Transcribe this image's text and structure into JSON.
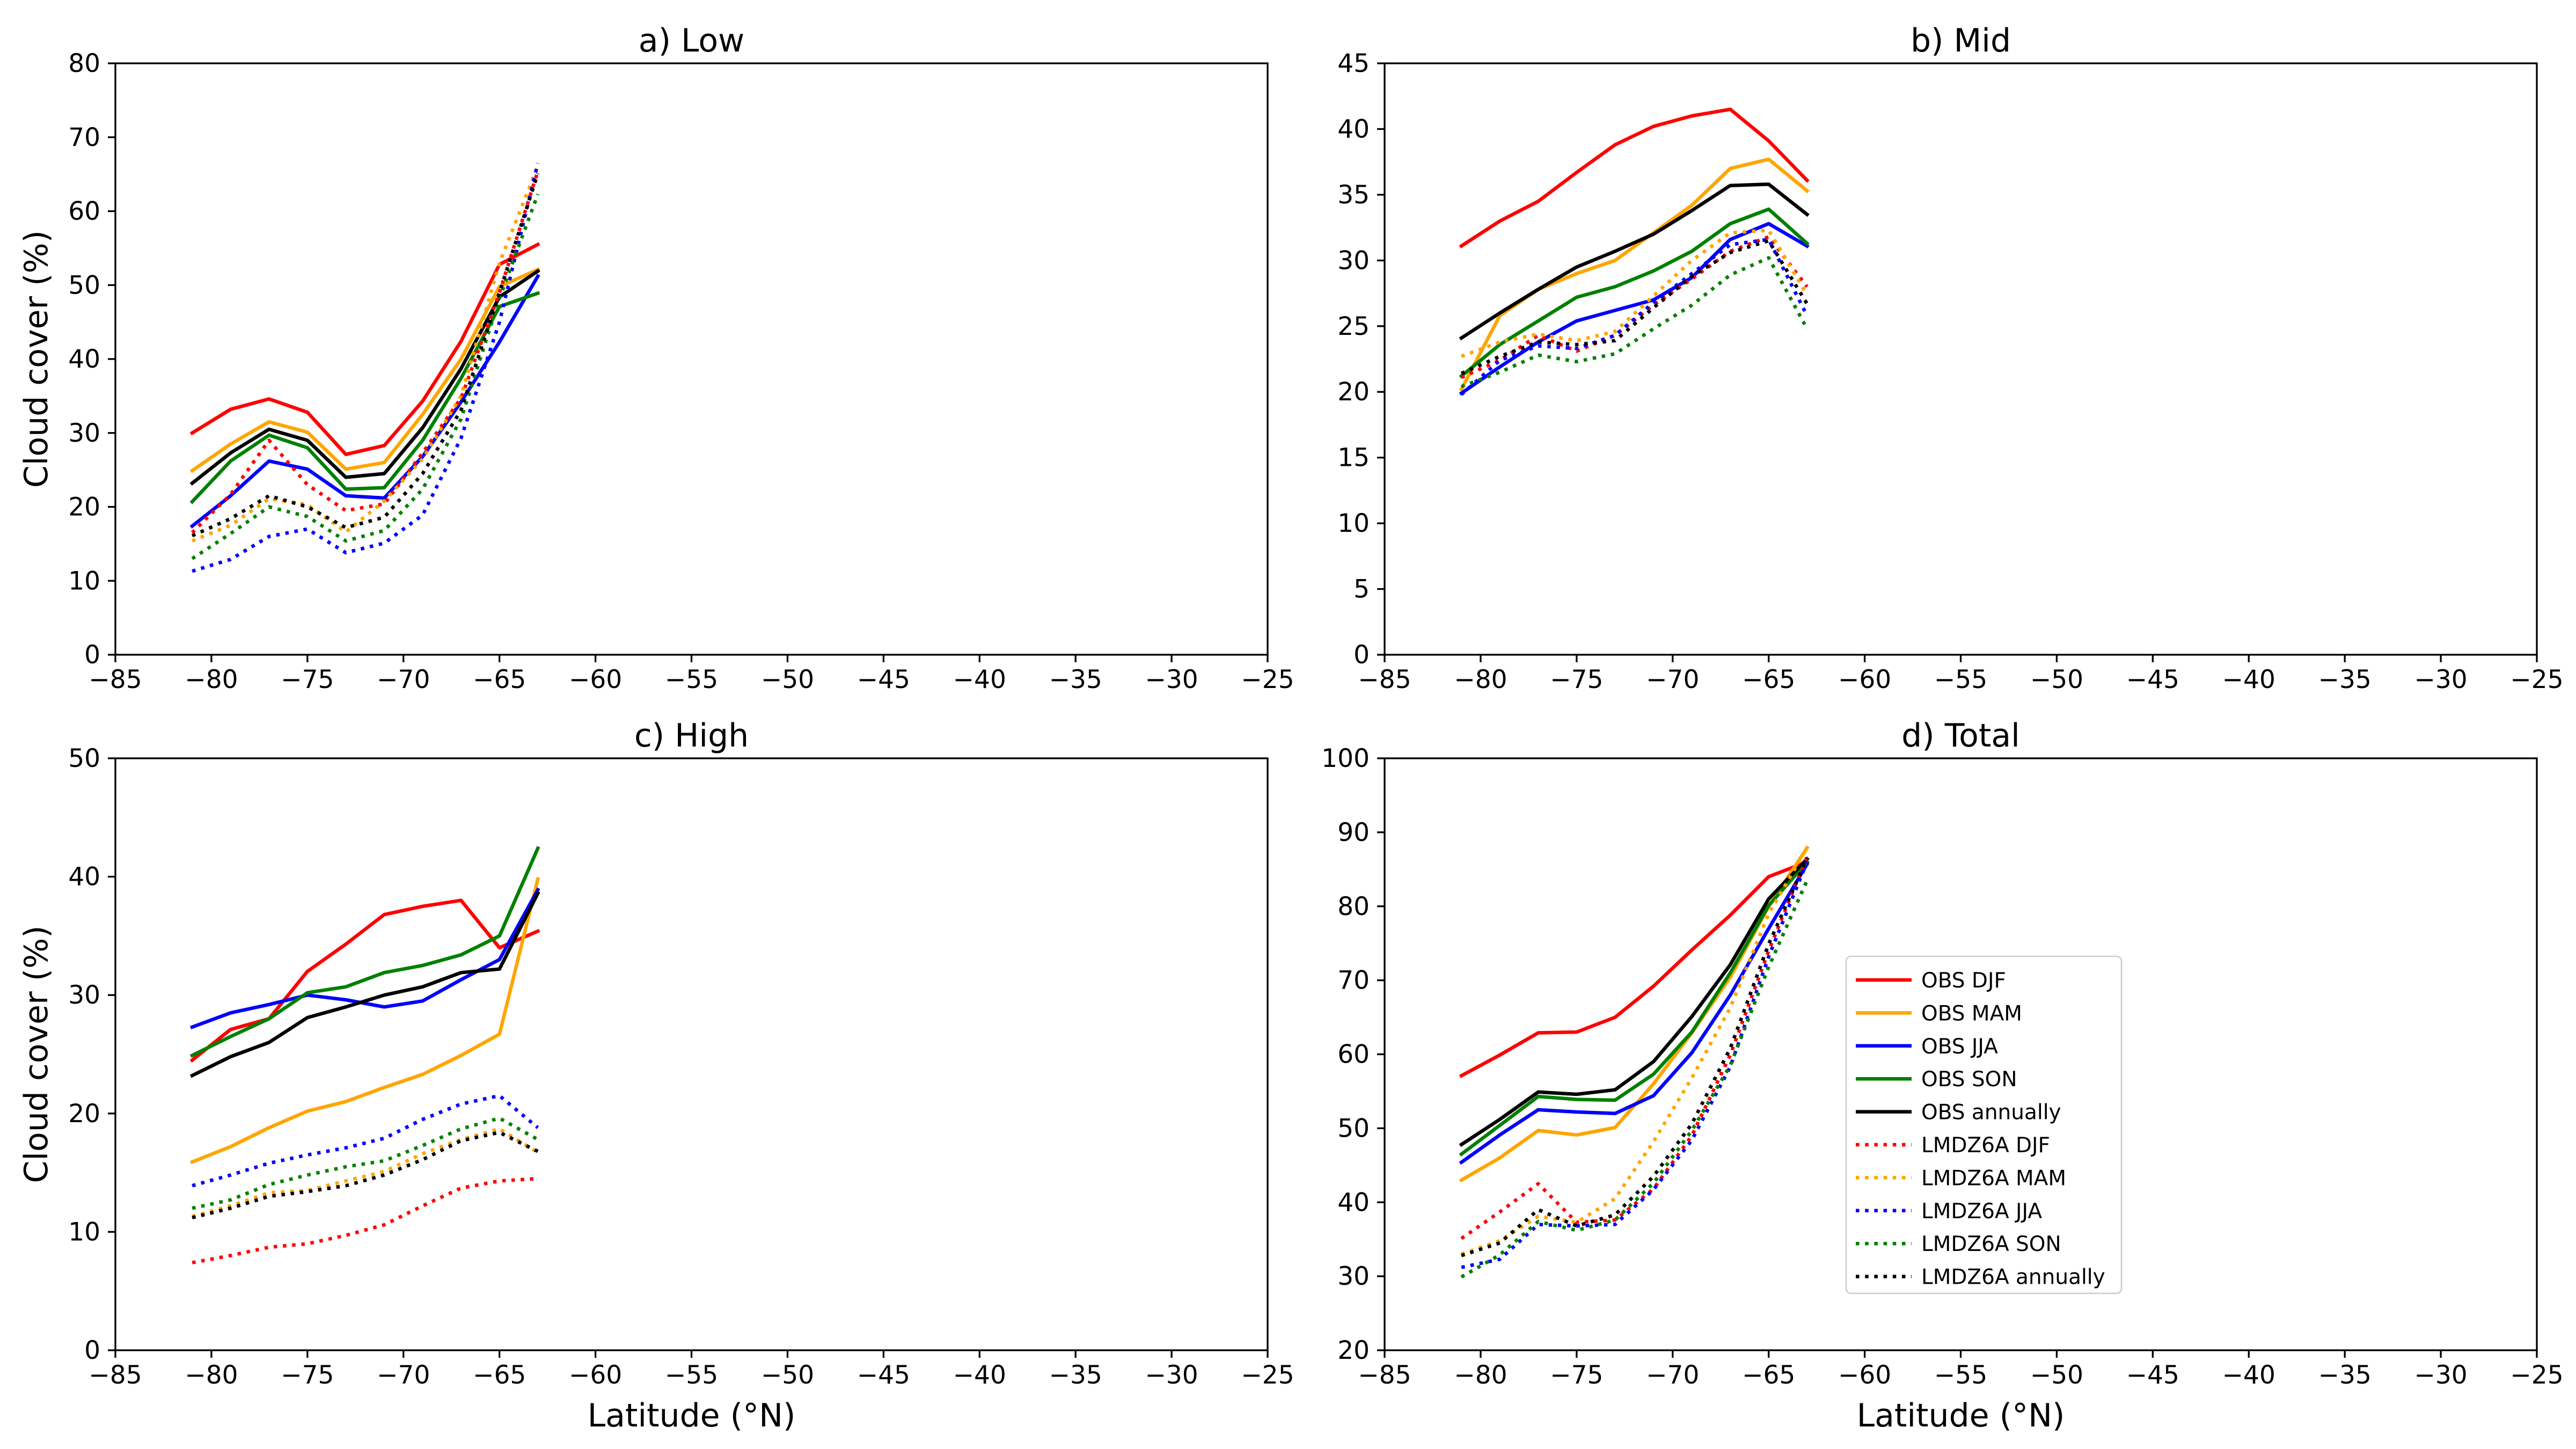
{
  "chart_data": [
    {
      "type": "line",
      "title": "a) Low",
      "xlabel": "",
      "ylabel": "Cloud cover (%)",
      "xlim": [
        -85,
        -25
      ],
      "ylim": [
        0,
        80
      ],
      "xticks": [
        -85,
        -80,
        -75,
        -70,
        -65,
        -60,
        -55,
        -50,
        -45,
        -40,
        -35,
        -30,
        -25
      ],
      "yticks": [
        0,
        10,
        20,
        30,
        40,
        50,
        60,
        70,
        80
      ],
      "x": [
        -81,
        -79,
        -77,
        -75,
        -73,
        -71,
        -69,
        -67,
        -65,
        -63
      ],
      "series": [
        {
          "name": "OBS DJF",
          "color": "#ff0000",
          "style": "solid",
          "values": [
            30.0,
            33.2,
            34.6,
            32.8,
            27.1,
            28.3,
            34.3,
            42.4,
            52.8,
            55.5
          ]
        },
        {
          "name": "OBS MAM",
          "color": "#ffa500",
          "style": "solid",
          "values": [
            24.9,
            28.5,
            31.5,
            30.1,
            25.1,
            26.0,
            32.5,
            40.0,
            49.8,
            52.1
          ]
        },
        {
          "name": "OBS JJA",
          "color": "#0000ff",
          "style": "solid",
          "values": [
            17.4,
            21.5,
            26.2,
            25.1,
            21.5,
            21.2,
            26.8,
            34.2,
            42.3,
            51.2
          ]
        },
        {
          "name": "OBS SON",
          "color": "#008000",
          "style": "solid",
          "values": [
            20.7,
            26.2,
            29.7,
            28.0,
            22.4,
            22.6,
            29.0,
            37.4,
            47.1,
            48.9
          ]
        },
        {
          "name": "OBS annually",
          "color": "#000000",
          "style": "solid",
          "values": [
            23.2,
            27.3,
            30.5,
            29.0,
            24.0,
            24.5,
            30.7,
            38.7,
            48.4,
            51.9
          ]
        },
        {
          "name": "LMDZ6A DJF",
          "color": "#ff0000",
          "style": "dotted",
          "values": [
            16.5,
            21.7,
            29.0,
            23.0,
            19.5,
            20.4,
            27.3,
            34.7,
            49.0,
            65.4
          ]
        },
        {
          "name": "LMDZ6A MAM",
          "color": "#ffa500",
          "style": "dotted",
          "values": [
            15.4,
            17.5,
            21.1,
            20.3,
            16.6,
            20.8,
            26.5,
            35.0,
            53.0,
            66.1
          ]
        },
        {
          "name": "LMDZ6A JJA",
          "color": "#0000ff",
          "style": "dotted",
          "values": [
            11.3,
            12.9,
            16.0,
            17.0,
            13.8,
            15.1,
            18.9,
            29.3,
            45.0,
            66.5
          ]
        },
        {
          "name": "LMDZ6A SON",
          "color": "#008000",
          "style": "dotted",
          "values": [
            13.0,
            16.4,
            20.0,
            18.7,
            15.4,
            16.8,
            22.4,
            31.9,
            48.2,
            62.3
          ]
        },
        {
          "name": "LMDZ6A annually",
          "color": "#000000",
          "style": "dotted",
          "values": [
            16.1,
            18.4,
            21.5,
            20.0,
            17.2,
            18.6,
            24.5,
            33.1,
            49.0,
            65.1
          ]
        }
      ]
    },
    {
      "type": "line",
      "title": "b) Mid",
      "xlabel": "",
      "ylabel": "",
      "xlim": [
        -85,
        -25
      ],
      "ylim": [
        0,
        45
      ],
      "xticks": [
        -85,
        -80,
        -75,
        -70,
        -65,
        -60,
        -55,
        -50,
        -45,
        -40,
        -35,
        -30,
        -25
      ],
      "yticks": [
        0,
        5,
        10,
        15,
        20,
        25,
        30,
        35,
        40,
        45
      ],
      "x": [
        -81,
        -79,
        -77,
        -75,
        -73,
        -71,
        -69,
        -67,
        -65,
        -63
      ],
      "series": [
        {
          "name": "OBS DJF",
          "color": "#ff0000",
          "style": "solid",
          "values": [
            31.1,
            33.0,
            34.5,
            36.7,
            38.8,
            40.2,
            41.0,
            41.5,
            39.1,
            36.1
          ]
        },
        {
          "name": "OBS MAM",
          "color": "#ffa500",
          "style": "solid",
          "values": [
            20.2,
            25.8,
            27.8,
            29.0,
            30.0,
            32.1,
            34.2,
            37.0,
            37.7,
            35.3
          ]
        },
        {
          "name": "OBS JJA",
          "color": "#0000ff",
          "style": "solid",
          "values": [
            19.9,
            21.9,
            23.8,
            25.4,
            26.2,
            27.0,
            28.7,
            31.6,
            32.8,
            31.1
          ]
        },
        {
          "name": "OBS SON",
          "color": "#008000",
          "style": "solid",
          "values": [
            21.2,
            23.6,
            25.4,
            27.2,
            28.0,
            29.2,
            30.7,
            32.8,
            33.9,
            31.3
          ]
        },
        {
          "name": "OBS annually",
          "color": "#000000",
          "style": "solid",
          "values": [
            24.1,
            26.0,
            27.8,
            29.5,
            30.7,
            32.0,
            33.8,
            35.7,
            35.8,
            33.5
          ]
        },
        {
          "name": "LMDZ6A DJF",
          "color": "#ff0000",
          "style": "dotted",
          "values": [
            21.1,
            22.4,
            24.3,
            23.1,
            24.3,
            26.6,
            28.6,
            30.7,
            31.8,
            28.0
          ]
        },
        {
          "name": "LMDZ6A MAM",
          "color": "#ffa500",
          "style": "dotted",
          "values": [
            22.7,
            23.8,
            24.4,
            23.9,
            24.6,
            27.3,
            30.0,
            32.1,
            32.3,
            27.4
          ]
        },
        {
          "name": "LMDZ6A JJA",
          "color": "#0000ff",
          "style": "dotted",
          "values": [
            19.8,
            22.4,
            23.5,
            23.3,
            24.3,
            26.8,
            29.0,
            31.2,
            31.6,
            25.8
          ]
        },
        {
          "name": "LMDZ6A SON",
          "color": "#008000",
          "style": "dotted",
          "values": [
            20.4,
            21.5,
            22.8,
            22.3,
            22.9,
            24.8,
            26.6,
            28.9,
            30.2,
            24.8
          ]
        },
        {
          "name": "LMDZ6A annually",
          "color": "#000000",
          "style": "dotted",
          "values": [
            21.4,
            22.7,
            23.8,
            23.6,
            23.9,
            26.4,
            28.8,
            30.6,
            31.5,
            26.7
          ]
        }
      ]
    },
    {
      "type": "line",
      "title": "c) High",
      "xlabel": "Latitude (°N)",
      "ylabel": "Cloud cover (%)",
      "xlim": [
        -85,
        -25
      ],
      "ylim": [
        0,
        50
      ],
      "xticks": [
        -85,
        -80,
        -75,
        -70,
        -65,
        -60,
        -55,
        -50,
        -45,
        -40,
        -35,
        -30,
        -25
      ],
      "yticks": [
        0,
        10,
        20,
        30,
        40,
        50
      ],
      "x": [
        -81,
        -79,
        -77,
        -75,
        -73,
        -71,
        -69,
        -67,
        -65,
        -63
      ],
      "series": [
        {
          "name": "OBS DJF",
          "color": "#ff0000",
          "style": "solid",
          "values": [
            24.5,
            27.1,
            28.0,
            32.0,
            34.3,
            36.8,
            37.5,
            38.0,
            34.0,
            35.4
          ]
        },
        {
          "name": "OBS MAM",
          "color": "#ffa500",
          "style": "solid",
          "values": [
            15.9,
            17.2,
            18.8,
            20.2,
            21.0,
            22.2,
            23.3,
            24.9,
            26.7,
            39.8
          ]
        },
        {
          "name": "OBS JJA",
          "color": "#0000ff",
          "style": "solid",
          "values": [
            27.3,
            28.5,
            29.2,
            30.0,
            29.6,
            29.0,
            29.5,
            31.3,
            33.0,
            38.9
          ]
        },
        {
          "name": "OBS SON",
          "color": "#008000",
          "style": "solid",
          "values": [
            24.9,
            26.5,
            28.0,
            30.2,
            30.7,
            31.9,
            32.5,
            33.4,
            35.0,
            42.4
          ]
        },
        {
          "name": "OBS annually",
          "color": "#000000",
          "style": "solid",
          "values": [
            23.2,
            24.8,
            26.0,
            28.1,
            29.0,
            30.0,
            30.7,
            31.9,
            32.2,
            38.6
          ]
        },
        {
          "name": "LMDZ6A DJF",
          "color": "#ff0000",
          "style": "dotted",
          "values": [
            7.4,
            8.0,
            8.7,
            9.0,
            9.7,
            10.6,
            12.2,
            13.7,
            14.3,
            14.5
          ]
        },
        {
          "name": "LMDZ6A MAM",
          "color": "#ffa500",
          "style": "dotted",
          "values": [
            11.3,
            12.2,
            13.3,
            13.5,
            14.3,
            15.1,
            16.6,
            17.8,
            18.7,
            16.7
          ]
        },
        {
          "name": "LMDZ6A JJA",
          "color": "#0000ff",
          "style": "dotted",
          "values": [
            13.9,
            14.8,
            15.8,
            16.5,
            17.1,
            17.9,
            19.5,
            20.8,
            21.5,
            18.8
          ]
        },
        {
          "name": "LMDZ6A SON",
          "color": "#008000",
          "style": "dotted",
          "values": [
            12.0,
            12.7,
            14.0,
            14.8,
            15.5,
            16.0,
            17.3,
            18.7,
            19.6,
            17.8
          ]
        },
        {
          "name": "LMDZ6A annually",
          "color": "#000000",
          "style": "dotted",
          "values": [
            11.2,
            12.0,
            13.0,
            13.4,
            13.9,
            14.8,
            16.1,
            17.7,
            18.4,
            16.8
          ]
        }
      ]
    },
    {
      "type": "line",
      "title": "d) Total",
      "xlabel": "Latitude (°N)",
      "ylabel": "",
      "xlim": [
        -85,
        -25
      ],
      "ylim": [
        20,
        100
      ],
      "xticks": [
        -85,
        -80,
        -75,
        -70,
        -65,
        -60,
        -55,
        -50,
        -45,
        -40,
        -35,
        -30,
        -25
      ],
      "yticks": [
        20,
        30,
        40,
        50,
        60,
        70,
        80,
        90,
        100
      ],
      "x": [
        -81,
        -79,
        -77,
        -75,
        -73,
        -71,
        -69,
        -67,
        -65,
        -63
      ],
      "legend": "center-left",
      "series": [
        {
          "name": "OBS DJF",
          "color": "#ff0000",
          "style": "solid",
          "values": [
            57.1,
            59.9,
            62.9,
            63.0,
            65.0,
            69.2,
            74.1,
            78.8,
            84.0,
            86.0
          ]
        },
        {
          "name": "OBS MAM",
          "color": "#ffa500",
          "style": "solid",
          "values": [
            43.0,
            46.0,
            49.7,
            49.1,
            50.1,
            56.0,
            62.9,
            70.4,
            80.0,
            87.9
          ]
        },
        {
          "name": "OBS JJA",
          "color": "#0000ff",
          "style": "solid",
          "values": [
            45.4,
            49.1,
            52.5,
            52.2,
            52.0,
            54.4,
            60.2,
            68.0,
            77.0,
            85.7
          ]
        },
        {
          "name": "OBS SON",
          "color": "#008000",
          "style": "solid",
          "values": [
            46.5,
            50.4,
            54.3,
            53.9,
            53.8,
            57.3,
            63.0,
            71.0,
            80.1,
            86.0
          ]
        },
        {
          "name": "OBS annually",
          "color": "#000000",
          "style": "solid",
          "values": [
            47.8,
            51.2,
            54.9,
            54.6,
            55.2,
            59.0,
            65.1,
            72.1,
            81.0,
            86.4
          ]
        },
        {
          "name": "LMDZ6A DJF",
          "color": "#ff0000",
          "style": "dotted",
          "values": [
            35.1,
            38.7,
            42.5,
            37.3,
            37.6,
            41.8,
            49.0,
            59.9,
            74.0,
            86.7
          ]
        },
        {
          "name": "LMDZ6A MAM",
          "color": "#ffa500",
          "style": "dotted",
          "values": [
            33.0,
            34.8,
            38.1,
            37.3,
            40.5,
            48.2,
            56.8,
            66.3,
            79.0,
            87.9
          ]
        },
        {
          "name": "LMDZ6A JJA",
          "color": "#0000ff",
          "style": "dotted",
          "values": [
            31.2,
            32.3,
            37.0,
            36.8,
            37.0,
            41.7,
            48.4,
            58.3,
            73.2,
            86.0
          ]
        },
        {
          "name": "LMDZ6A SON",
          "color": "#008000",
          "style": "dotted",
          "values": [
            29.9,
            32.9,
            37.4,
            36.2,
            37.6,
            42.6,
            49.7,
            58.5,
            71.8,
            83.5
          ]
        },
        {
          "name": "LMDZ6A annually",
          "color": "#000000",
          "style": "dotted",
          "values": [
            32.8,
            34.5,
            39.0,
            36.8,
            38.3,
            43.5,
            50.6,
            60.8,
            74.9,
            86.5
          ]
        }
      ]
    }
  ]
}
